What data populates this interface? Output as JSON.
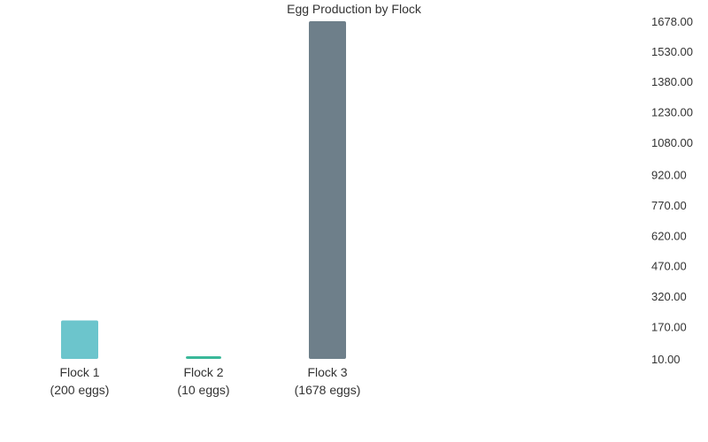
{
  "chart_data": {
    "type": "bar",
    "title": "Egg Production by Flock",
    "categories": [
      "Flock 1",
      "Flock 2",
      "Flock 3"
    ],
    "category_sublabels": [
      "(200 eggs)",
      "(10 eggs)",
      "(1678 eggs)"
    ],
    "values": [
      200,
      10,
      1678
    ],
    "colors": [
      "#6cc5cc",
      "#3ab899",
      "#6e7f8a"
    ],
    "ylim": [
      10,
      1678
    ],
    "y_ticks": [
      10,
      170,
      320,
      470,
      620,
      770,
      920,
      1080,
      1230,
      1380,
      1530,
      1678
    ],
    "y_tick_labels": [
      "10.00",
      "170.00",
      "320.00",
      "470.00",
      "620.00",
      "770.00",
      "920.00",
      "1080.00",
      "1230.00",
      "1380.00",
      "1530.00",
      "1678.00"
    ],
    "yaxis_position": "right",
    "grid": false,
    "legend": false
  }
}
